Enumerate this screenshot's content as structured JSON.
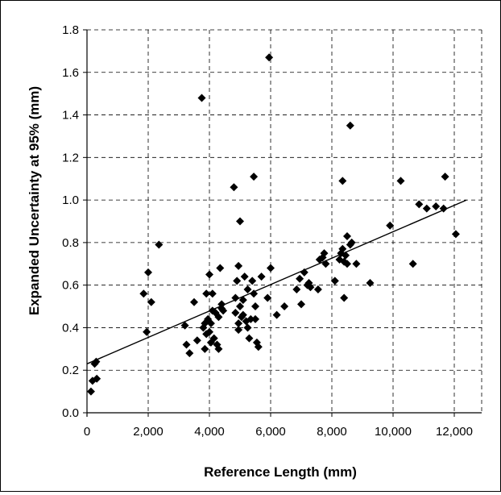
{
  "chart_data": {
    "type": "scatter",
    "title": "",
    "xlabel": "Reference Length (mm)",
    "ylabel": "Expanded Uncertainty at 95% (mm)",
    "xlim": [
      0,
      12000
    ],
    "ylim": [
      0,
      1.8
    ],
    "x_ticks": [
      0,
      2000,
      4000,
      6000,
      8000,
      10000,
      12000
    ],
    "x_tick_labels": [
      "0",
      "2,000",
      "4,000",
      "6,000",
      "8,000",
      "10,000",
      "12,000"
    ],
    "y_ticks": [
      0,
      0.2,
      0.4,
      0.6,
      0.8,
      1.0,
      1.2,
      1.4,
      1.6,
      1.8
    ],
    "y_tick_labels": [
      "0.0",
      "0.2",
      "0.4",
      "0.6",
      "0.8",
      "1.0",
      "1.2",
      "1.4",
      "1.6",
      "1.8"
    ],
    "grid": true,
    "marker": "diamond",
    "marker_color": "#000000",
    "trendline": {
      "type": "linear",
      "points": [
        [
          0,
          0.23
        ],
        [
          12400,
          1.0
        ]
      ]
    },
    "points": [
      [
        130,
        0.1
      ],
      [
        180,
        0.15
      ],
      [
        250,
        0.23
      ],
      [
        300,
        0.24
      ],
      [
        320,
        0.16
      ],
      [
        1850,
        0.56
      ],
      [
        1950,
        0.38
      ],
      [
        2000,
        0.66
      ],
      [
        2100,
        0.52
      ],
      [
        2350,
        0.79
      ],
      [
        3200,
        0.41
      ],
      [
        3250,
        0.32
      ],
      [
        3350,
        0.28
      ],
      [
        3500,
        0.52
      ],
      [
        3600,
        0.34
      ],
      [
        3750,
        1.48
      ],
      [
        3800,
        0.4
      ],
      [
        3850,
        0.42
      ],
      [
        3850,
        0.3
      ],
      [
        3900,
        0.37
      ],
      [
        3900,
        0.56
      ],
      [
        3950,
        0.44
      ],
      [
        4000,
        0.65
      ],
      [
        4000,
        0.38
      ],
      [
        4050,
        0.33
      ],
      [
        4050,
        0.42
      ],
      [
        4100,
        0.48
      ],
      [
        4100,
        0.56
      ],
      [
        4150,
        0.35
      ],
      [
        4200,
        0.47
      ],
      [
        4250,
        0.32
      ],
      [
        4300,
        0.45
      ],
      [
        4300,
        0.3
      ],
      [
        4350,
        0.68
      ],
      [
        4400,
        0.51
      ],
      [
        4400,
        0.49
      ],
      [
        4450,
        0.48
      ],
      [
        4800,
        1.06
      ],
      [
        4850,
        0.54
      ],
      [
        4850,
        0.47
      ],
      [
        4900,
        0.62
      ],
      [
        4950,
        0.69
      ],
      [
        4950,
        0.42
      ],
      [
        4950,
        0.39
      ],
      [
        5000,
        0.9
      ],
      [
        5000,
        0.5
      ],
      [
        5050,
        0.45
      ],
      [
        5100,
        0.53
      ],
      [
        5100,
        0.46
      ],
      [
        5150,
        0.64
      ],
      [
        5200,
        0.43
      ],
      [
        5250,
        0.58
      ],
      [
        5250,
        0.4
      ],
      [
        5300,
        0.35
      ],
      [
        5350,
        0.44
      ],
      [
        5400,
        0.62
      ],
      [
        5450,
        1.11
      ],
      [
        5450,
        0.56
      ],
      [
        5500,
        0.5
      ],
      [
        5500,
        0.44
      ],
      [
        5550,
        0.33
      ],
      [
        5600,
        0.31
      ],
      [
        5700,
        0.64
      ],
      [
        5900,
        0.54
      ],
      [
        5950,
        1.67
      ],
      [
        6000,
        0.68
      ],
      [
        6200,
        0.46
      ],
      [
        6450,
        0.5
      ],
      [
        6850,
        0.58
      ],
      [
        6950,
        0.63
      ],
      [
        7000,
        0.51
      ],
      [
        7100,
        0.66
      ],
      [
        7200,
        0.6
      ],
      [
        7250,
        0.61
      ],
      [
        7300,
        0.59
      ],
      [
        7550,
        0.58
      ],
      [
        7600,
        0.72
      ],
      [
        7700,
        0.73
      ],
      [
        7750,
        0.75
      ],
      [
        7800,
        0.7
      ],
      [
        8100,
        0.62
      ],
      [
        8250,
        0.72
      ],
      [
        8300,
        0.75
      ],
      [
        8350,
        1.09
      ],
      [
        8350,
        0.77
      ],
      [
        8400,
        0.71
      ],
      [
        8400,
        0.54
      ],
      [
        8450,
        0.74
      ],
      [
        8500,
        0.83
      ],
      [
        8500,
        0.7
      ],
      [
        8600,
        1.35
      ],
      [
        8600,
        0.79
      ],
      [
        8650,
        0.8
      ],
      [
        8800,
        0.7
      ],
      [
        9250,
        0.61
      ],
      [
        9900,
        0.88
      ],
      [
        10250,
        1.09
      ],
      [
        10650,
        0.7
      ],
      [
        10850,
        0.98
      ],
      [
        11100,
        0.96
      ],
      [
        11400,
        0.97
      ],
      [
        11650,
        0.96
      ],
      [
        11700,
        1.11
      ],
      [
        12050,
        0.84
      ]
    ]
  }
}
